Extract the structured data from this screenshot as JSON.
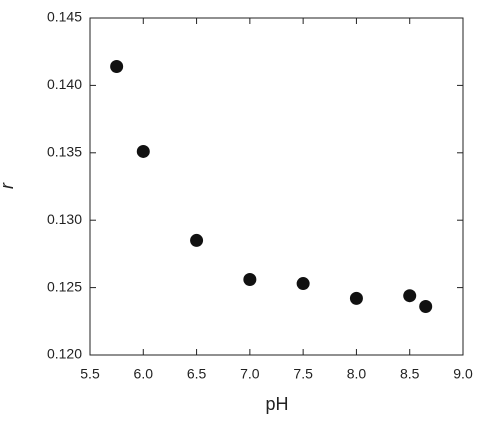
{
  "chart_data": {
    "type": "scatter",
    "x_label": "pH",
    "y_label": "r",
    "x": [
      5.75,
      6.0,
      6.5,
      7.0,
      7.5,
      8.0,
      8.5,
      8.65
    ],
    "values": [
      0.1414,
      0.1351,
      0.1285,
      0.1256,
      0.1253,
      0.1242,
      0.1244,
      0.1236
    ],
    "color": "#111111",
    "xlim": [
      5.5,
      9.0
    ],
    "xticks": [
      5.5,
      {
        "value": 6,
        "label": "6.0"
      },
      6.5,
      {
        "value": 7,
        "label": "7.0"
      },
      7.5,
      {
        "value": 8,
        "label": "8.0"
      },
      8.5,
      {
        "value": 9,
        "label": "9.0"
      }
    ],
    "ylim": [
      0.12,
      0.145
    ],
    "yticks": [
      {
        "value": 0.12,
        "label": "0.120"
      },
      0.125,
      {
        "value": 0.13,
        "label": "0.130"
      },
      0.135,
      {
        "value": 0.14,
        "label": "0.140"
      },
      0.145
    ]
  }
}
